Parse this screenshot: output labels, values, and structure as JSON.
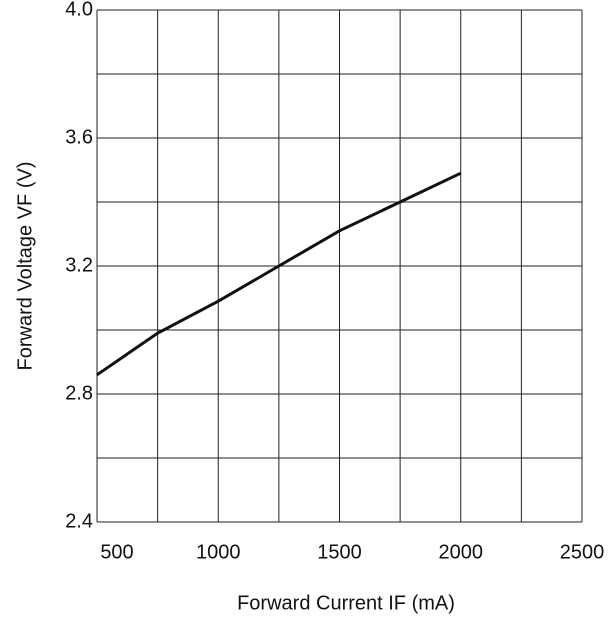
{
  "chart_data": {
    "type": "line",
    "xlabel": "Forward Current IF  (mA)",
    "ylabel": "Forward  Voltage  VF  (V)",
    "x": [
      500,
      750,
      1000,
      1250,
      1500,
      1750,
      2000
    ],
    "series": [
      {
        "name": "VF",
        "color": "#111111",
        "values": [
          2.86,
          2.99,
          3.09,
          3.2,
          3.31,
          3.4,
          3.49
        ]
      }
    ],
    "xlim": [
      500,
      2500
    ],
    "xticks": [
      500,
      1000,
      1500,
      2000,
      2500
    ],
    "ylim": [
      2.4,
      4.0
    ],
    "yticks": [
      2.4,
      2.8,
      3.2,
      3.6,
      {
        "value": 4.0,
        "label": "4.0"
      }
    ],
    "xgrid": [
      500,
      750,
      1000,
      1250,
      1500,
      1750,
      2000,
      2250,
      2500
    ],
    "ygrid": [
      2.4,
      2.6,
      2.8,
      3.0,
      3.2,
      3.4,
      3.6,
      3.8,
      4.0
    ],
    "grid": true
  }
}
